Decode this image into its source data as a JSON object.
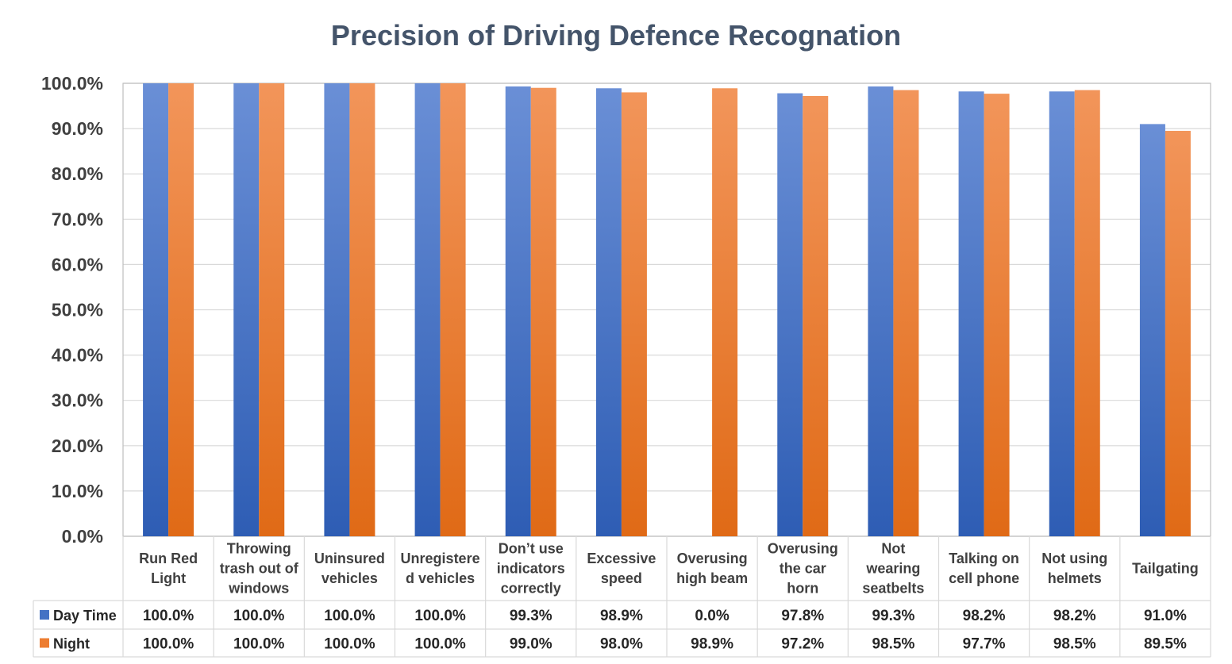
{
  "chart_data": {
    "type": "bar",
    "title": "Precision of Driving Defence Recognation",
    "categories": [
      [
        "Run Red",
        "Light"
      ],
      [
        "Throwing",
        "trash out of",
        "windows"
      ],
      [
        "Uninsured",
        "vehicles"
      ],
      [
        "Unregistere",
        "d vehicles"
      ],
      [
        "Don’t use",
        "indicators",
        "correctly"
      ],
      [
        "Excessive",
        "speed"
      ],
      [
        "Overusing",
        "high beam"
      ],
      [
        "Overusing",
        "the car",
        "horn"
      ],
      [
        "Not",
        "wearing",
        "seatbelts"
      ],
      [
        "Talking on",
        "cell phone"
      ],
      [
        "Not using",
        "helmets"
      ],
      [
        "Tailgating"
      ]
    ],
    "series": [
      {
        "name": "Day Time",
        "color": "#4472c4",
        "values": [
          100.0,
          100.0,
          100.0,
          100.0,
          99.3,
          98.9,
          0.0,
          97.8,
          99.3,
          98.2,
          98.2,
          91.0
        ],
        "labels": [
          "100.0%",
          "100.0%",
          "100.0%",
          "100.0%",
          "99.3%",
          "98.9%",
          "0.0%",
          "97.8%",
          "99.3%",
          "98.2%",
          "98.2%",
          "91.0%"
        ]
      },
      {
        "name": "Night",
        "color": "#ed7d31",
        "values": [
          100.0,
          100.0,
          100.0,
          100.0,
          99.0,
          98.0,
          98.9,
          97.2,
          98.5,
          97.7,
          98.5,
          89.5
        ],
        "labels": [
          "100.0%",
          "100.0%",
          "100.0%",
          "100.0%",
          "99.0%",
          "98.0%",
          "98.9%",
          "97.2%",
          "98.5%",
          "97.7%",
          "98.5%",
          "89.5%"
        ]
      }
    ],
    "y_ticks": [
      "0.0%",
      "10.0%",
      "20.0%",
      "30.0%",
      "40.0%",
      "50.0%",
      "60.0%",
      "70.0%",
      "80.0%",
      "90.0%",
      "100.0%"
    ],
    "ylim": [
      0,
      100
    ],
    "grid": true,
    "legend": "data-table",
    "data_table": true
  }
}
